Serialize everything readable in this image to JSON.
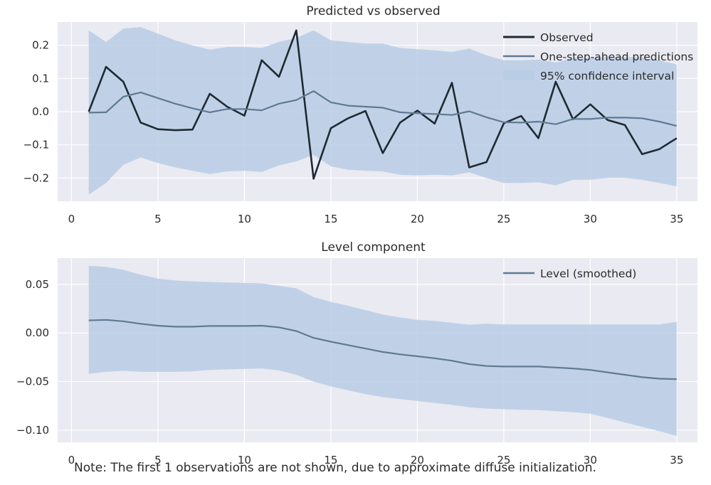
{
  "colors": {
    "panel_bg": "#EAEAF2",
    "grid": "#FFFFFF",
    "observed": "#1F2A33",
    "prediction": "#5E7A92",
    "ci_fill": "#B9CDE5",
    "text": "#2B2B2B"
  },
  "note": "Note: The first 1 observations are not shown, due to approximate diffuse initialization.",
  "chart_data": [
    {
      "type": "line",
      "title": "Predicted vs observed",
      "xlabel": "",
      "ylabel": "",
      "xlim": [
        -0.8,
        36.2
      ],
      "ylim": [
        -0.27,
        0.27
      ],
      "xticks": [
        0,
        5,
        10,
        15,
        20,
        25,
        30,
        35
      ],
      "yticks": [
        -0.2,
        -0.1,
        0.0,
        0.1,
        0.2
      ],
      "yticklabels": [
        "−0.2",
        "−0.1",
        "0.0",
        "0.1",
        "0.2"
      ],
      "grid": true,
      "legend_position": "top-right",
      "x": [
        1,
        2,
        3,
        4,
        5,
        6,
        7,
        8,
        9,
        10,
        11,
        12,
        13,
        14,
        15,
        16,
        17,
        18,
        19,
        20,
        21,
        22,
        23,
        24,
        25,
        26,
        27,
        28,
        29,
        30,
        31,
        32,
        33,
        34,
        35
      ],
      "series": [
        {
          "name": "Observed",
          "style": "line",
          "color": "#1F2A33",
          "values": [
            0.0,
            0.135,
            0.09,
            -0.033,
            -0.053,
            -0.056,
            -0.054,
            0.054,
            0.015,
            -0.012,
            0.155,
            0.105,
            0.245,
            -0.202,
            -0.05,
            -0.02,
            0.002,
            -0.125,
            -0.033,
            0.003,
            -0.036,
            0.087,
            -0.168,
            -0.152,
            -0.035,
            -0.013,
            -0.08,
            0.09,
            -0.023,
            0.022,
            -0.025,
            -0.04,
            -0.128,
            -0.113,
            -0.08
          ]
        },
        {
          "name": "One-step-ahead predictions",
          "style": "line",
          "color": "#5E7A92",
          "values": [
            -0.003,
            -0.002,
            0.045,
            0.058,
            0.041,
            0.024,
            0.01,
            -0.002,
            0.008,
            0.008,
            0.004,
            0.024,
            0.035,
            0.062,
            0.028,
            0.018,
            0.015,
            0.012,
            -0.002,
            -0.005,
            -0.007,
            -0.01,
            0.001,
            -0.017,
            -0.032,
            -0.033,
            -0.03,
            -0.038,
            -0.022,
            -0.022,
            -0.018,
            -0.018,
            -0.02,
            -0.03,
            -0.043
          ]
        },
        {
          "name": "95% confidence interval",
          "style": "band",
          "color": "#B9CDE5",
          "lower": [
            -0.25,
            -0.215,
            -0.16,
            -0.138,
            -0.155,
            -0.168,
            -0.178,
            -0.188,
            -0.18,
            -0.178,
            -0.182,
            -0.162,
            -0.15,
            -0.13,
            -0.165,
            -0.175,
            -0.178,
            -0.18,
            -0.19,
            -0.192,
            -0.19,
            -0.192,
            -0.183,
            -0.2,
            -0.215,
            -0.215,
            -0.213,
            -0.222,
            -0.205,
            -0.205,
            -0.2,
            -0.2,
            -0.205,
            -0.215,
            -0.225
          ],
          "upper": [
            0.245,
            0.21,
            0.25,
            0.255,
            0.235,
            0.215,
            0.2,
            0.187,
            0.195,
            0.195,
            0.192,
            0.21,
            0.222,
            0.245,
            0.215,
            0.21,
            0.205,
            0.205,
            0.192,
            0.188,
            0.185,
            0.18,
            0.19,
            0.17,
            0.155,
            0.155,
            0.157,
            0.148,
            0.162,
            0.162,
            0.165,
            0.165,
            0.163,
            0.155,
            0.142
          ]
        }
      ]
    },
    {
      "type": "line",
      "title": "Level component",
      "xlabel": "",
      "ylabel": "",
      "xlim": [
        -0.8,
        36.2
      ],
      "ylim": [
        -0.1125,
        0.077
      ],
      "xticks": [
        0,
        5,
        10,
        15,
        20,
        25,
        30,
        35
      ],
      "yticks": [
        -0.1,
        -0.05,
        0.0,
        0.05
      ],
      "yticklabels": [
        "−0.10",
        "−0.05",
        "0.00",
        "0.05"
      ],
      "grid": true,
      "legend_position": "top-right",
      "x": [
        1,
        2,
        3,
        4,
        5,
        6,
        7,
        8,
        9,
        10,
        11,
        12,
        13,
        14,
        15,
        16,
        17,
        18,
        19,
        20,
        21,
        22,
        23,
        24,
        25,
        26,
        27,
        28,
        29,
        30,
        31,
        32,
        33,
        34,
        35
      ],
      "series": [
        {
          "name": "Level (smoothed)",
          "style": "line",
          "color": "#5E7A92",
          "values": [
            0.013,
            0.0135,
            0.012,
            0.0095,
            0.0075,
            0.0065,
            0.0065,
            0.0072,
            0.0072,
            0.0072,
            0.0075,
            0.0058,
            0.002,
            -0.005,
            -0.009,
            -0.0125,
            -0.016,
            -0.0195,
            -0.022,
            -0.024,
            -0.026,
            -0.0285,
            -0.032,
            -0.034,
            -0.0345,
            -0.0345,
            -0.0345,
            -0.0355,
            -0.0365,
            -0.038,
            -0.0405,
            -0.043,
            -0.0455,
            -0.047,
            -0.0475
          ]
        },
        {
          "name": "",
          "style": "band",
          "color": "#B9CDE5",
          "lower": [
            -0.042,
            -0.04,
            -0.039,
            -0.04,
            -0.04,
            -0.04,
            -0.0395,
            -0.038,
            -0.0375,
            -0.037,
            -0.0365,
            -0.0385,
            -0.043,
            -0.05,
            -0.055,
            -0.059,
            -0.063,
            -0.066,
            -0.068,
            -0.07,
            -0.072,
            -0.074,
            -0.0765,
            -0.0778,
            -0.0785,
            -0.079,
            -0.0793,
            -0.0805,
            -0.0815,
            -0.083,
            -0.0875,
            -0.092,
            -0.0965,
            -0.101,
            -0.106
          ],
          "upper": [
            0.069,
            0.068,
            0.065,
            0.06,
            0.056,
            0.054,
            0.053,
            0.0525,
            0.052,
            0.0515,
            0.051,
            0.0485,
            0.046,
            0.037,
            0.032,
            0.028,
            0.0235,
            0.019,
            0.016,
            0.0135,
            0.0125,
            0.0105,
            0.0085,
            0.0095,
            0.0088,
            0.0088,
            0.0088,
            0.0088,
            0.0088,
            0.0088,
            0.0088,
            0.0088,
            0.0088,
            0.0088,
            0.0115
          ]
        }
      ]
    }
  ]
}
